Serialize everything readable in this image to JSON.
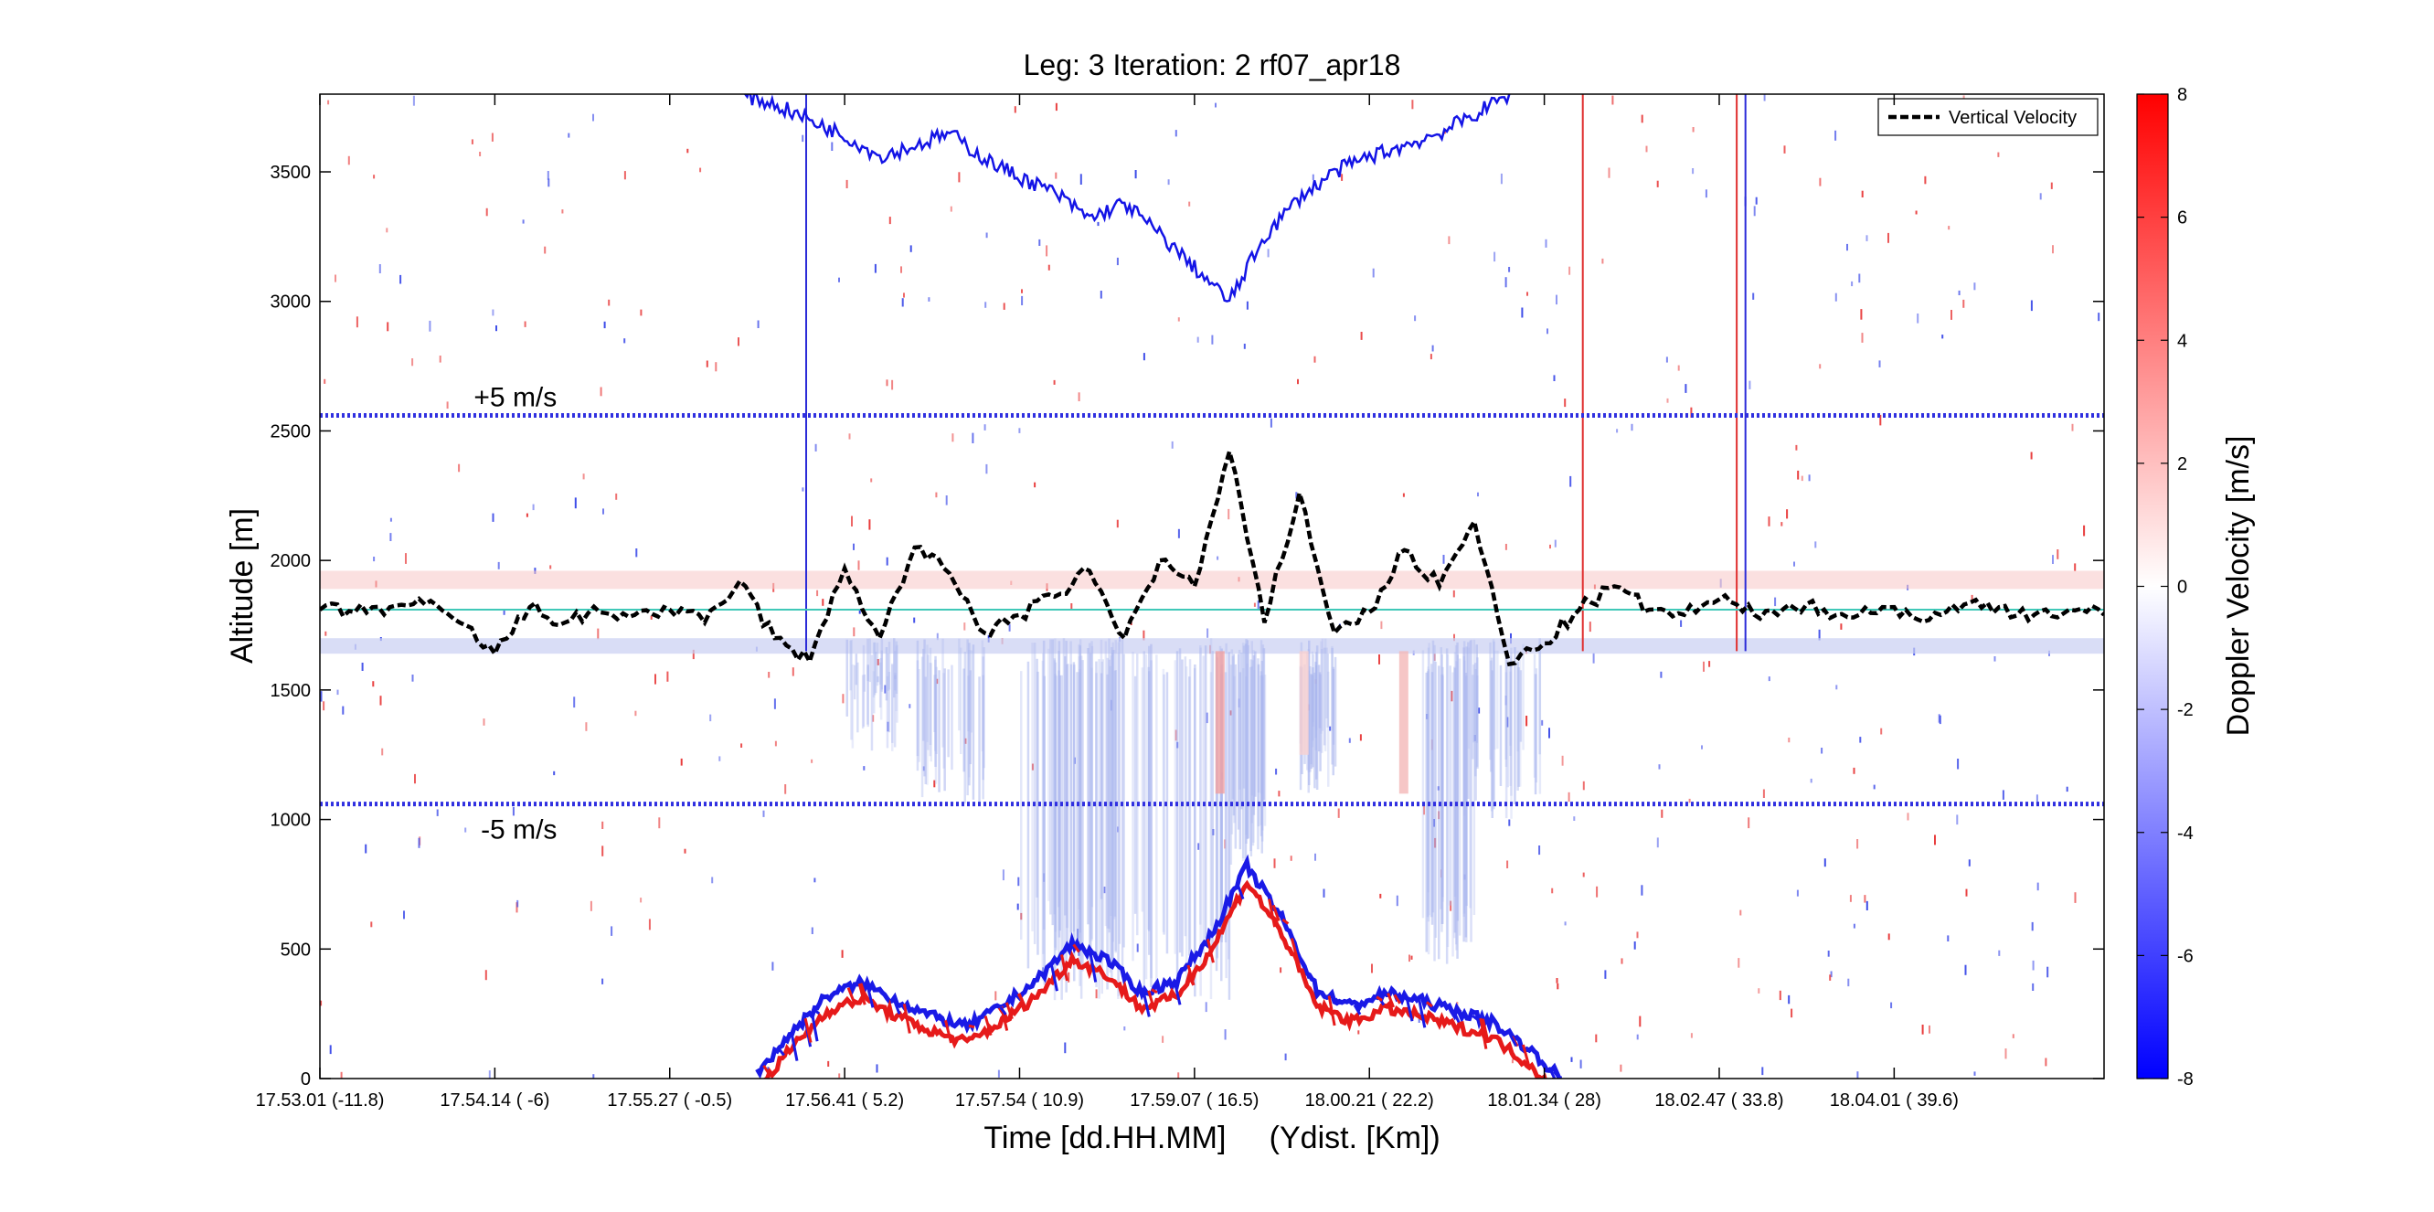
{
  "chart_data": {
    "type": "heatmap",
    "title": "Leg: 3  Iteration: 2  rf07_apr18",
    "xlabel": "Time [dd.HH.MM]     (Ydist. [Km])",
    "ylabel": "Altitude [m]",
    "colorbar_label": "Doppler Velocity [m/s]",
    "xlim": [
      0,
      1020
    ],
    "ylim": [
      0,
      3800
    ],
    "x_ticks": [
      {
        "x": 0,
        "label": "17.53.01   (-11.8)"
      },
      {
        "x": 100,
        "label": "17.54.14   (    -6)"
      },
      {
        "x": 200,
        "label": "17.55.27   ( -0.5)"
      },
      {
        "x": 300,
        "label": "17.56.41   (   5.2)"
      },
      {
        "x": 400,
        "label": "17.57.54   ( 10.9)"
      },
      {
        "x": 500,
        "label": "17.59.07   ( 16.5)"
      },
      {
        "x": 600,
        "label": "18.00.21   ( 22.2)"
      },
      {
        "x": 700,
        "label": "18.01.34   (    28)"
      },
      {
        "x": 800,
        "label": "18.02.47   ( 33.8)"
      },
      {
        "x": 900,
        "label": "18.04.01   ( 39.6)"
      }
    ],
    "y_ticks": [
      0,
      500,
      1000,
      1500,
      2000,
      2500,
      3000,
      3500
    ],
    "colorbar": {
      "range": [
        -8,
        8
      ],
      "ticks": [
        8,
        6,
        4,
        2,
        0,
        -2,
        -4,
        -6,
        -8
      ],
      "colors": [
        "#0000ff",
        "#ffffff",
        "#ff0000"
      ]
    },
    "legend": {
      "position": "top-right",
      "entries": [
        "Vertical Velocity"
      ]
    },
    "annotations": {
      "plus_label": "+5 m/s",
      "minus_label": "-5 m/s",
      "plus_level": 2560,
      "minus_level": 1060,
      "flight_level": 1810
    },
    "vertical_velocity_series": {
      "name": "Vertical Velocity",
      "x": [
        0,
        20,
        40,
        60,
        80,
        100,
        120,
        140,
        160,
        180,
        200,
        220,
        240,
        260,
        280,
        300,
        320,
        340,
        360,
        380,
        400,
        420,
        440,
        460,
        480,
        500,
        520,
        540,
        560,
        580,
        600,
        620,
        640,
        660,
        680,
        700,
        720,
        740,
        760,
        780,
        800,
        820,
        840,
        860,
        880,
        900,
        920,
        940,
        960,
        980,
        1000,
        1020
      ],
      "y": [
        1810,
        1800,
        1820,
        1830,
        1760,
        1640,
        1820,
        1760,
        1800,
        1790,
        1810,
        1760,
        1920,
        1700,
        1610,
        1970,
        1700,
        2050,
        1950,
        1720,
        1790,
        1860,
        1960,
        1700,
        2000,
        1900,
        2420,
        1760,
        2260,
        1720,
        1800,
        2040,
        1900,
        2150,
        1600,
        1680,
        1810,
        1900,
        1810,
        1790,
        1850,
        1790,
        1830,
        1810,
        1790,
        1820,
        1770,
        1830,
        1820,
        1790,
        1810,
        1790
      ]
    },
    "cloud_top_series": {
      "x": [
        240,
        260,
        280,
        300,
        320,
        340,
        360,
        380,
        400,
        420,
        440,
        460,
        480,
        500,
        520,
        540,
        560,
        580,
        600,
        620,
        640,
        660,
        680
      ],
      "y": [
        3800,
        3760,
        3700,
        3640,
        3560,
        3600,
        3650,
        3550,
        3480,
        3420,
        3320,
        3380,
        3260,
        3130,
        3000,
        3250,
        3400,
        3500,
        3560,
        3600,
        3650,
        3720,
        3800
      ]
    },
    "surface_echo_series": {
      "x": [
        250,
        270,
        290,
        310,
        330,
        350,
        370,
        390,
        410,
        430,
        450,
        470,
        490,
        510,
        530,
        550,
        570,
        590,
        610,
        630,
        650,
        670,
        690,
        710
      ],
      "y": [
        20,
        180,
        320,
        370,
        300,
        240,
        200,
        280,
        380,
        520,
        460,
        330,
        380,
        560,
        820,
        620,
        340,
        280,
        330,
        300,
        260,
        220,
        120,
        0
      ]
    },
    "vertical_markers": [
      {
        "x": 278,
        "color": "#2b2bd8"
      },
      {
        "x": 722,
        "color": "#e03030"
      },
      {
        "x": 810,
        "color": "#e03030"
      },
      {
        "x": 815,
        "color": "#2b2bd8"
      }
    ]
  }
}
